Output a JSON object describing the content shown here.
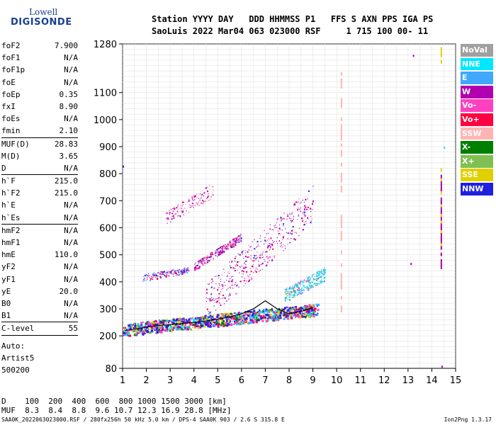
{
  "logo": {
    "line1": "Lowell",
    "line2": "DIGISONDE"
  },
  "header": {
    "line1": "Station YYYY DAY   DDD HHMMSS P1   FFS S AXN PPS IGA PS",
    "line2": "SaoLuis 2022 Mar04 063 023000 RSF     1 715 100 00- 11"
  },
  "params": [
    {
      "key": "foF2",
      "value": "7.900"
    },
    {
      "key": "foF1",
      "value": "N/A"
    },
    {
      "key": "foF1p",
      "value": "N/A"
    },
    {
      "key": "foE",
      "value": "N/A"
    },
    {
      "key": "foEp",
      "value": "0.35"
    },
    {
      "key": "fxI",
      "value": "8.90"
    },
    {
      "key": "foEs",
      "value": "N/A"
    },
    {
      "key": "fmin",
      "value": "2.10"
    },
    {
      "sep": true
    },
    {
      "key": "MUF(D)",
      "value": "28.83"
    },
    {
      "key": "M(D)",
      "value": "3.65"
    },
    {
      "key": "D",
      "value": "N/A"
    },
    {
      "sep": true
    },
    {
      "key": "h`F",
      "value": "215.0"
    },
    {
      "key": "h`F2",
      "value": "215.0"
    },
    {
      "key": "h`E",
      "value": "N/A"
    },
    {
      "key": "h`Es",
      "value": "N/A"
    },
    {
      "sep": true
    },
    {
      "key": "hmF2",
      "value": "N/A"
    },
    {
      "key": "hmF1",
      "value": "N/A"
    },
    {
      "key": "hmE",
      "value": "110.0"
    },
    {
      "key": "yF2",
      "value": "N/A"
    },
    {
      "key": "yF1",
      "value": "N/A"
    },
    {
      "key": "yE",
      "value": "20.0"
    },
    {
      "key": "B0",
      "value": "N/A"
    },
    {
      "key": "B1",
      "value": "N/A"
    },
    {
      "sep": true
    },
    {
      "key": "C-level",
      "value": "55"
    },
    {
      "sep": true
    }
  ],
  "auto": {
    "line1": "Auto:",
    "line2": "Artist5",
    "line3": "500200"
  },
  "tables": {
    "d_row": "D    100  200  400  600  800 1000 1500 3000 [km]",
    "muf_row": "MUF  8.3  8.4  8.8  9.6 10.7 12.3 16.9 28.8 [MHz]"
  },
  "footer": {
    "left": "SAA0K_2022063023000.RSF / 280fx256h 50 kHz 5.0 km / DPS-4 SAA0K 903 / 2.6 S 315.8 E",
    "right": "Ion2Png 1.3.17"
  },
  "legend": [
    {
      "label": "NoVal",
      "color": "#a0a0a0"
    },
    {
      "label": "NNE",
      "color": "#00e8ff"
    },
    {
      "label": "E",
      "color": "#40a8ff"
    },
    {
      "label": "W",
      "color": "#b000b0"
    },
    {
      "label": "Vo-",
      "color": "#ff40c0"
    },
    {
      "label": "Vo+",
      "color": "#ff0040"
    },
    {
      "label": "SSW",
      "color": "#ffb4b4"
    },
    {
      "label": "X-",
      "color": "#008000"
    },
    {
      "label": "X+",
      "color": "#80c050"
    },
    {
      "label": "SSE",
      "color": "#e0d000"
    },
    {
      "label": "NNW",
      "color": "#2020e0"
    }
  ],
  "chart_data": {
    "type": "scatter",
    "x_ticks": [
      1,
      2,
      3,
      4,
      5,
      6,
      7,
      8,
      9,
      10,
      11,
      12,
      13,
      14,
      15
    ],
    "y_ticks": [
      80,
      200,
      300,
      400,
      500,
      600,
      700,
      800,
      900,
      1000,
      1100,
      1280
    ],
    "xlim": [
      1,
      15
    ],
    "ylim": [
      80,
      1280
    ],
    "grid": true,
    "trace_f_layer": {
      "x": [
        1.1,
        1.5,
        2.0,
        2.5,
        3.0,
        3.5,
        4.0,
        4.5,
        5.0,
        5.5,
        6.0,
        6.5,
        7.0,
        7.5,
        8.0,
        8.5,
        9.0
      ],
      "y": [
        220,
        225,
        232,
        238,
        242,
        246,
        250,
        255,
        262,
        270,
        282,
        300,
        330,
        300,
        282,
        290,
        305
      ]
    },
    "echo_groups": [
      {
        "name": "ground",
        "x0": 1.0,
        "x1": 9.2,
        "y_at_x0": 215,
        "y_at_x1": 290,
        "spread": 45,
        "count": 1100
      },
      {
        "name": "low-F",
        "x0": 1.8,
        "x1": 3.8,
        "y_at_x0": 410,
        "y_at_x1": 440,
        "spread": 25,
        "count": 160
      },
      {
        "name": "mid-F",
        "x0": 4.0,
        "x1": 6.0,
        "y_at_x0": 450,
        "y_at_x1": 560,
        "spread": 30,
        "count": 240
      },
      {
        "name": "upper",
        "x0": 2.8,
        "x1": 4.8,
        "y_at_x0": 620,
        "y_at_x1": 730,
        "spread": 55,
        "count": 130
      },
      {
        "name": "scatter-mid",
        "x0": 4.5,
        "x1": 9.0,
        "y_at_x0": 300,
        "y_at_x1": 660,
        "spread": 140,
        "count": 420
      },
      {
        "name": "east-blob",
        "x0": 7.8,
        "x1": 9.5,
        "y_at_x0": 340,
        "y_at_x1": 420,
        "spread": 50,
        "count": 320
      }
    ],
    "line_features": [
      {
        "x": 10.2,
        "y0": 1220,
        "y1": 300,
        "color": "SSW"
      },
      {
        "x": 14.4,
        "y0": 1280,
        "y1": 1220,
        "color": "SSE"
      },
      {
        "x": 14.4,
        "y0": 820,
        "y1": 460,
        "color": "SSE"
      },
      {
        "x": 14.4,
        "y0": 820,
        "y1": 460,
        "color": "W"
      }
    ]
  }
}
